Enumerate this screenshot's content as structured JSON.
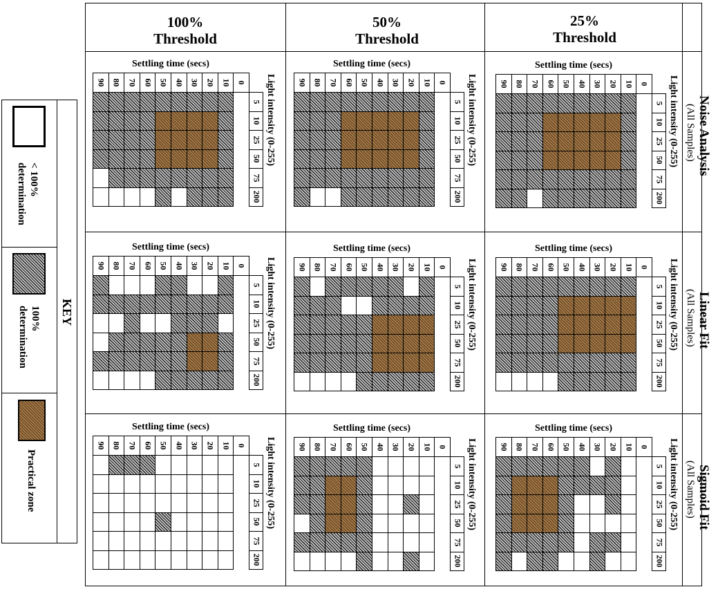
{
  "key": {
    "title": "KEY",
    "items": [
      {
        "label_line1": "< 100%",
        "label_line2": "determination",
        "style": "white"
      },
      {
        "label_line1": "100%",
        "label_line2": "determination",
        "style": "hatch"
      },
      {
        "label_line1": "Practical zone",
        "label_line2": "",
        "style": "practical"
      }
    ]
  },
  "columns": [
    {
      "pct": "100%",
      "word": "Threshold"
    },
    {
      "pct": "50%",
      "word": "Threshold"
    },
    {
      "pct": "25%",
      "word": "Threshold"
    }
  ],
  "rows": [
    {
      "title": "Noise Analysis",
      "sub": "(All Samples)"
    },
    {
      "title": "Linear Fit",
      "sub": "(All Samples)"
    },
    {
      "title": "Sigmoid Fit",
      "sub": "(All Samples)"
    }
  ],
  "settling_label": "Settling time (secs)",
  "light_label": "Light intensity (0-255)",
  "settling_values": [
    "90",
    "80",
    "70",
    "60",
    "50",
    "40",
    "30",
    "20",
    "10",
    "0"
  ],
  "light_values": [
    "5",
    "10",
    "25",
    "50",
    "75",
    "200"
  ],
  "colors": {
    "white": "#ffffff",
    "hatch": "#8c8c8c",
    "practical": "#9a7040"
  },
  "chart_data": {
    "type": "heatmap",
    "cell_codes": {
      "W": "< 100% determination",
      "H": "100% determination",
      "P": "Practical zone"
    },
    "x_label": "Settling time (secs)",
    "x_values": [
      90,
      80,
      70,
      60,
      50,
      40,
      30,
      20,
      10
    ],
    "y_label": "Light intensity (0-255)",
    "y_values": [
      5,
      10,
      25,
      50,
      75,
      200
    ],
    "grids": [
      {
        "row": "Noise Analysis",
        "col": "100% Threshold",
        "cells": [
          "HHHHHHHHH",
          "HHHHPPPPH",
          "HHHHPPPPH",
          "HHHHPPPPH",
          "WHHHHHHHH",
          "WWWWHWHHH"
        ]
      },
      {
        "row": "Noise Analysis",
        "col": "50% Threshold",
        "cells": [
          "HHHHHHHHH",
          "HHHPPPPPH",
          "HHHPPPPPH",
          "HHHPPPPPH",
          "HHHHHHHHH",
          "HWWHHHHHH"
        ]
      },
      {
        "row": "Noise Analysis",
        "col": "25% Threshold",
        "cells": [
          "HHHHHHHHH",
          "HHHPPPPPH",
          "HHHPPPPPH",
          "HHHPPPPPH",
          "HHHHHHHHH",
          "HHWHHHHHH"
        ]
      },
      {
        "row": "Linear Fit",
        "col": "100% Threshold",
        "cells": [
          "HWWWHHWWH",
          "HHHHHHHHH",
          "WWHWWHHHW",
          "WHHHHHPPH",
          "HHHHHHPPH",
          "WWWWHHHHH"
        ]
      },
      {
        "row": "Linear Fit",
        "col": "50% Threshold",
        "cells": [
          "HWHHHHHWH",
          "HHHWWHHHH",
          "HHHHHPPPP",
          "HHHHHPPPP",
          "HHHHHPPPP",
          "WWWWHHHHH"
        ]
      },
      {
        "row": "Linear Fit",
        "col": "25% Threshold",
        "cells": [
          "HHHHHHHHH",
          "HHHHPPPPP",
          "HHHHPPPPP",
          "HHHHPPPPP",
          "HHHHHHHHH",
          "WWWWHHHHH"
        ]
      },
      {
        "row": "Sigmoid Fit",
        "col": "100% Threshold",
        "cells": [
          "WHHHWWWWW",
          "WWWWWWWWW",
          "WWWWWWWWW",
          "WWWWHWWWW",
          "WWWWWWWWW",
          "WWWWWWWWW"
        ]
      },
      {
        "row": "Sigmoid Fit",
        "col": "50% Threshold",
        "cells": [
          "HHHHHWWWW",
          "HHPPHWWWW",
          "HHPPHWWHW",
          "WHPPHWWWW",
          "HHHHHWWWW",
          "WWWWHWWHW"
        ]
      },
      {
        "row": "Sigmoid Fit",
        "col": "25% Threshold",
        "cells": [
          "HHHHHHWHW",
          "HPPPHHHHW",
          "HPPPHWWHW",
          "HPPPHWWWW",
          "HHHHHWHHW",
          "HWHHWWHWW"
        ]
      }
    ]
  }
}
